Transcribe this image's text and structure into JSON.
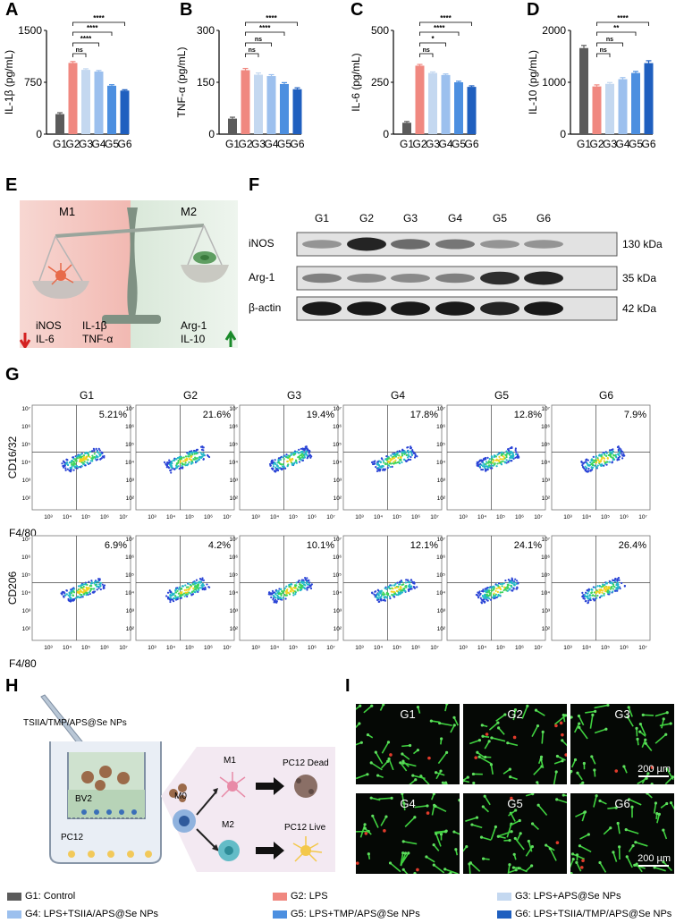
{
  "panels": {
    "A": "A",
    "B": "B",
    "C": "C",
    "D": "D",
    "E": "E",
    "F": "F",
    "G": "G",
    "H": "H",
    "I": "I"
  },
  "colors": {
    "G1": "#5b5b5b",
    "G2": "#f08880",
    "G3": "#c4d8f0",
    "G4": "#9cc0ee",
    "G5": "#4c8fe0",
    "G6": "#1f5fbf"
  },
  "chart_data": [
    {
      "type": "bar",
      "panel": "A",
      "categories": [
        "G1",
        "G2",
        "G3",
        "G4",
        "G5",
        "G6"
      ],
      "values": [
        290,
        1030,
        930,
        905,
        700,
        630
      ],
      "errors": [
        20,
        20,
        15,
        15,
        15,
        12
      ],
      "ylabel": "IL-1β (pg/mL)",
      "ylim": [
        0,
        1500
      ],
      "yticks": [
        "0",
        "750",
        "1500"
      ],
      "significance": [
        "ns",
        "****",
        "****",
        "****"
      ]
    },
    {
      "type": "bar",
      "panel": "B",
      "categories": [
        "G1",
        "G2",
        "G3",
        "G4",
        "G5",
        "G6"
      ],
      "values": [
        45,
        185,
        172,
        168,
        145,
        130
      ],
      "errors": [
        4,
        5,
        5,
        4,
        4,
        4
      ],
      "ylabel": "TNF-α (pg/mL)",
      "ylim": [
        0,
        300
      ],
      "yticks": [
        "0",
        "150",
        "300"
      ],
      "significance": [
        "ns",
        "ns",
        "****",
        "****"
      ]
    },
    {
      "type": "bar",
      "panel": "C",
      "categories": [
        "G1",
        "G2",
        "G3",
        "G4",
        "G5",
        "G6"
      ],
      "values": [
        55,
        330,
        295,
        285,
        250,
        228
      ],
      "errors": [
        6,
        6,
        5,
        5,
        5,
        5
      ],
      "ylabel": "IL-6 (pg/mL)",
      "ylim": [
        0,
        500
      ],
      "yticks": [
        "0",
        "250",
        "500"
      ],
      "significance": [
        "ns",
        "*",
        "****",
        "****"
      ]
    },
    {
      "type": "bar",
      "panel": "D",
      "categories": [
        "G1",
        "G2",
        "G3",
        "G4",
        "G5",
        "G6"
      ],
      "values": [
        1660,
        920,
        970,
        1060,
        1180,
        1370
      ],
      "errors": [
        50,
        30,
        25,
        30,
        30,
        45
      ],
      "ylabel": "IL-10 (pg/mL)",
      "ylim": [
        0,
        2000
      ],
      "yticks": [
        "0",
        "1000",
        "2000"
      ],
      "significance": [
        "ns",
        "ns",
        "**",
        "****"
      ]
    }
  ],
  "panelE": {
    "m1": "M1",
    "m2": "M2",
    "left_a": "iNOS",
    "left_b": "IL-6",
    "mid_a": "IL-1β",
    "mid_b": "TNF-α",
    "right_a": "Arg-1",
    "right_b": "IL-10"
  },
  "western": {
    "groups": [
      "G1",
      "G2",
      "G3",
      "G4",
      "G5",
      "G6"
    ],
    "rows": [
      {
        "label": "iNOS",
        "kda": "130 kDa",
        "intensity": [
          0.35,
          0.9,
          0.55,
          0.5,
          0.35,
          0.35
        ]
      },
      {
        "label": "Arg-1",
        "kda": "35 kDa",
        "intensity": [
          0.45,
          0.4,
          0.4,
          0.45,
          0.85,
          0.9
        ]
      },
      {
        "label": "β-actin",
        "kda": "42 kDa",
        "intensity": [
          0.95,
          0.95,
          0.95,
          0.95,
          0.9,
          0.95
        ]
      }
    ]
  },
  "flow": {
    "groups": [
      "G1",
      "G2",
      "G3",
      "G4",
      "G5",
      "G6"
    ],
    "row1": {
      "ylabel": "CD16/32",
      "xlabel": "F4/80",
      "pcts": [
        "5.21%",
        "21.6%",
        "19.4%",
        "17.8%",
        "12.8%",
        "7.9%"
      ]
    },
    "row2": {
      "ylabel": "CD206",
      "xlabel": "F4/80",
      "pcts": [
        "6.9%",
        "4.2%",
        "10.1%",
        "12.1%",
        "24.1%",
        "26.4%"
      ]
    },
    "yticks": [
      "10⁷",
      "10⁶",
      "10⁵",
      "10⁴",
      "10³",
      "10²"
    ],
    "xticks": [
      "10³",
      "10⁴",
      "10⁵",
      "10⁶",
      "10⁷"
    ]
  },
  "schematic": {
    "np_label": "TSIIA/TMP/APS@Se NPs",
    "bv2": "BV2",
    "pc12": "PC12",
    "m0": "M0",
    "m1": "M1",
    "m2": "M2",
    "dead": "PC12 Dead",
    "live": "PC12 Live"
  },
  "micro": {
    "labels": [
      "G1",
      "G2",
      "G3",
      "G4",
      "G5",
      "G6"
    ],
    "scale": "200 µm"
  },
  "legend": [
    {
      "text": "G1: Control",
      "color": "#5b5b5b"
    },
    {
      "text": "G2: LPS",
      "color": "#f08880"
    },
    {
      "text": "G3: LPS+APS@Se NPs",
      "color": "#c4d8f0"
    },
    {
      "text": "G4: LPS+TSIIA/APS@Se NPs",
      "color": "#9cc0ee"
    },
    {
      "text": "G5: LPS+TMP/APS@Se NPs",
      "color": "#4c8fe0"
    },
    {
      "text": "G6: LPS+TSIIA/TMP/APS@Se NPs",
      "color": "#1f5fbf"
    }
  ]
}
